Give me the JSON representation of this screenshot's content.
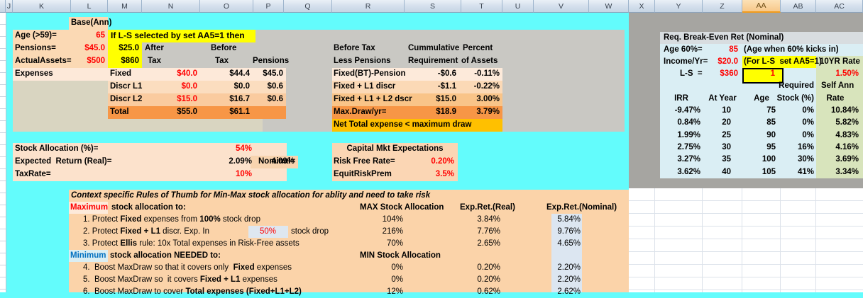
{
  "columns": {
    "letters": [
      "J",
      "K",
      "L",
      "M",
      "N",
      "O",
      "P",
      "Q",
      "R",
      "S",
      "T",
      "U",
      "V",
      "W",
      "X",
      "Y",
      "Z",
      "AA",
      "AB",
      "AC"
    ],
    "selected": "AA"
  },
  "base": {
    "title": "Base(Ann)",
    "age_label": "Age (>59)=",
    "age_value": "65",
    "pensions_label": "Pensions=",
    "pensions_value": "$45.0",
    "pensions_m": "$25.0",
    "assets_label": "ActualAssets=",
    "assets_value": "$500",
    "assets_m": "$860"
  },
  "banner": "If L-S selected by set AA5=1 then",
  "expenses": {
    "section_label": "Expenses",
    "after_line1": "After",
    "after_line2": "Tax",
    "before_line1": "Before",
    "before_line2": "Tax",
    "pensions_header": "Pensions",
    "rows": [
      {
        "label": "Fixed",
        "after": "$40.0",
        "before": "$44.4",
        "pensions": "$45.0"
      },
      {
        "label": "Discr L1",
        "after": "$0.0",
        "before": "$0.0",
        "pensions": "$0.6"
      },
      {
        "label": "Discr L2",
        "after": "$15.0",
        "before": "$16.7",
        "pensions": "$0.6"
      },
      {
        "label": "Total",
        "after": "$55.0",
        "before": "$61.1",
        "pensions": ""
      }
    ]
  },
  "requirement": {
    "h1a": "Before Tax",
    "h1b": "Less Pensions",
    "h2a": "Cummulative",
    "h2b": "Requirement",
    "h3a": "Percent",
    "h3b": "of Assets",
    "rows": [
      {
        "label": "Fixed(BT)-Pension",
        "req": "-$0.6",
        "pct": "-0.11%"
      },
      {
        "label": "Fixed + L1 discr",
        "req": "-$1.1",
        "pct": "-0.22%"
      },
      {
        "label": "Fixed + L1 + L2 dscr",
        "req": "$15.0",
        "pct": "3.00%"
      },
      {
        "label": "Max.Draw/yr=",
        "req": "$18.9",
        "pct": "3.79%"
      }
    ],
    "footer": "Net Total expense < maximum draw"
  },
  "allocation": {
    "stock_label": "Stock Allocation (%)=",
    "stock_value": "54%",
    "return_label": "Expected  Return (Real)=",
    "return_value": "2.09%",
    "nominal_label": "Nominal=",
    "nominal_value": "4.09%",
    "tax_label": "TaxRate=",
    "tax_value": "10%"
  },
  "capital": {
    "title": "Capital Mkt Expectations",
    "rf_label": "Risk Free Rate=",
    "rf_value": "0.20%",
    "erp_label": "EquitRiskPrem",
    "erp_value": "3.5%"
  },
  "breakeven": {
    "title": "Req. Break-Even Ret (Nominal)",
    "age_label": "Age 60%=",
    "age_value": "85",
    "age_note": "(Age when 60% kicks in)",
    "income_label": "Income/Yr=",
    "income_value": "$20.0",
    "ls_note": "(For L-S  set AA5=1)",
    "rate10_label": "10YR Rate",
    "ls_label": "L-S  =",
    "ls_value": "$360",
    "ls_input": "1",
    "rate10_value": "1.50%",
    "required_label": "Required",
    "selfann_label": "Self Ann",
    "col_irr": "IRR",
    "col_year": "At Year",
    "col_age": "Age",
    "col_stock": "Stock (%)",
    "col_rate": "Rate",
    "rows": [
      [
        "-9.47%",
        "10",
        "75",
        "0%",
        "10.84%"
      ],
      [
        "0.84%",
        "20",
        "85",
        "0%",
        "5.82%"
      ],
      [
        "1.99%",
        "25",
        "90",
        "0%",
        "4.83%"
      ],
      [
        "2.75%",
        "30",
        "95",
        "16%",
        "4.16%"
      ],
      [
        "3.27%",
        "35",
        "100",
        "30%",
        "3.69%"
      ],
      [
        "3.62%",
        "40",
        "105",
        "41%",
        "3.34%"
      ]
    ]
  },
  "rules": {
    "title": "Context specific Rules of Thumb for Min-Max stock allocation for ablity and need to take risk",
    "max_label": "Maximum",
    "max_heading": "stock allocation to:",
    "col_max": "MAX Stock Allocation",
    "col_real": "Exp.Ret.(Real)",
    "col_nominal": "Exp.Ret.(Nominal)",
    "min_label": "Minimum",
    "min_heading": "stock allocation NEEDED to:",
    "col_min": "MIN Stock Allocation",
    "fifty_value": "50%",
    "fifty_suffix": "stock drop",
    "max_rows": [
      {
        "segments": [
          {
            "t": "1. Protect ",
            "b": 0
          },
          {
            "t": "Fixed",
            "b": 1
          },
          {
            "t": " expenses from ",
            "b": 0
          },
          {
            "t": "100%",
            "b": 1
          },
          {
            "t": " stock drop",
            "b": 0
          }
        ],
        "alloc": "104%",
        "real": "3.84%",
        "nominal": "5.84%"
      },
      {
        "segments": [
          {
            "t": "2. Protect ",
            "b": 0
          },
          {
            "t": "Fixed + L1",
            "b": 1
          },
          {
            "t": " discr. Exp. In",
            "b": 0
          }
        ],
        "alloc": "216%",
        "real": "7.76%",
        "nominal": "9.76%"
      },
      {
        "segments": [
          {
            "t": "3. Protect ",
            "b": 0
          },
          {
            "t": "Ellis",
            "b": 1
          },
          {
            "t": " rule: 10x Total expenses in Risk-Free assets",
            "b": 0
          }
        ],
        "alloc": "70%",
        "real": "2.65%",
        "nominal": "4.65%"
      }
    ],
    "min_rows": [
      {
        "segments": [
          {
            "t": "4.  Boost MaxDraw so that it covers only  ",
            "b": 0
          },
          {
            "t": "Fixed",
            "b": 1
          },
          {
            "t": " expenses",
            "b": 0
          }
        ],
        "alloc": "0%",
        "real": "0.20%",
        "nominal": "2.20%"
      },
      {
        "segments": [
          {
            "t": "5.  Boost MaxDraw so  it covers ",
            "b": 0
          },
          {
            "t": "Fixed + L1",
            "b": 1
          },
          {
            "t": " expenses",
            "b": 0
          }
        ],
        "alloc": "0%",
        "real": "0.20%",
        "nominal": "2.20%"
      },
      {
        "segments": [
          {
            "t": "6.  Boost MaxDraw to cover ",
            "b": 0
          },
          {
            "t": "Total expenses (Fixed+L1+L2)",
            "b": 1
          }
        ],
        "alloc": "12%",
        "real": "0.62%",
        "nominal": "2.62%"
      }
    ]
  },
  "colors": {
    "highlight_yellow": "#FFFF00",
    "negative_red": "#FF0000",
    "min_blue": "#0070C0",
    "total_orange": "#F79646",
    "warning_gold": "#FFC000",
    "sheet_cyan": "#63FCFC"
  }
}
